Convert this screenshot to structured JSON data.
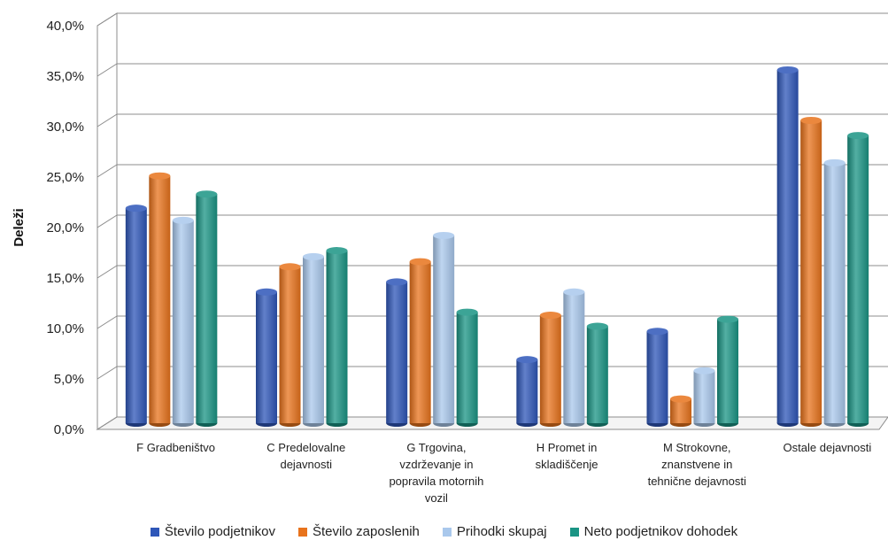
{
  "chart_data": {
    "type": "bar",
    "ylabel": "Deleži",
    "ylim": [
      0,
      40
    ],
    "yticks": [
      "0,0%",
      "5,0%",
      "10,0%",
      "15,0%",
      "20,0%",
      "25,0%",
      "30,0%",
      "35,0%",
      "40,0%"
    ],
    "grid": true,
    "legend_position": "bottom",
    "categories": [
      [
        "F Gradbeništvo"
      ],
      [
        "C Predelovalne",
        "dejavnosti"
      ],
      [
        "G Trgovina,",
        "vzdrževanje in",
        "popravila motornih",
        "vozil"
      ],
      [
        "H Promet in",
        "skladiščenje"
      ],
      [
        "M Strokovne,",
        "znanstvene in",
        "tehnične dejavnosti"
      ],
      [
        "Ostale dejavnosti"
      ]
    ],
    "series": [
      {
        "name": "Število podjetnikov",
        "color": "#2E56B8",
        "values": [
          21.3,
          13.0,
          14.0,
          6.3,
          9.1,
          35.0
        ]
      },
      {
        "name": "Število zaposlenih",
        "color": "#E8731C",
        "values": [
          24.5,
          15.5,
          16.0,
          10.7,
          2.4,
          30.0
        ]
      },
      {
        "name": "Prihodki skupaj",
        "color": "#A9C8EC",
        "values": [
          20.1,
          16.5,
          18.6,
          13.0,
          5.2,
          25.8
        ]
      },
      {
        "name": "Neto podjetnikov dohodek",
        "color": "#1A9484",
        "values": [
          22.7,
          17.1,
          11.0,
          9.6,
          10.3,
          28.5
        ]
      }
    ]
  }
}
